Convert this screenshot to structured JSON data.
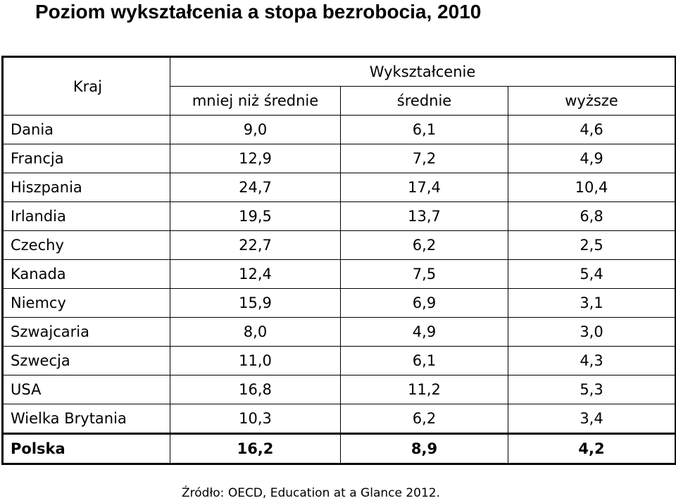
{
  "title": "Poziom wykształcenia a stopa bezrobocia, 2010",
  "source": "Źródło: OECD, Education at a Glance 2012.",
  "chart_data": {
    "type": "table",
    "title": "Poziom wykształcenia a stopa bezrobocia, 2010",
    "row_header": "Kraj",
    "column_group": "Wykształcenie",
    "columns": [
      "mniej niż średnie",
      "średnie",
      "wyższe"
    ],
    "rows": [
      {
        "country": "Dania",
        "values": [
          "9,0",
          "6,1",
          "4,6"
        ]
      },
      {
        "country": "Francja",
        "values": [
          "12,9",
          "7,2",
          "4,9"
        ]
      },
      {
        "country": "Hiszpania",
        "values": [
          "24,7",
          "17,4",
          "10,4"
        ]
      },
      {
        "country": "Irlandia",
        "values": [
          "19,5",
          "13,7",
          "6,8"
        ]
      },
      {
        "country": "Czechy",
        "values": [
          "22,7",
          "6,2",
          "2,5"
        ]
      },
      {
        "country": "Kanada",
        "values": [
          "12,4",
          "7,5",
          "5,4"
        ]
      },
      {
        "country": "Niemcy",
        "values": [
          "15,9",
          "6,9",
          "3,1"
        ]
      },
      {
        "country": "Szwajcaria",
        "values": [
          "8,0",
          "4,9",
          "3,0"
        ]
      },
      {
        "country": "Szwecja",
        "values": [
          "11,0",
          "6,1",
          "4,3"
        ]
      },
      {
        "country": "USA",
        "values": [
          "16,8",
          "11,2",
          "5,3"
        ]
      },
      {
        "country": "Wielka Brytania",
        "values": [
          "10,3",
          "6,2",
          "3,4"
        ]
      },
      {
        "country": "Polska",
        "values": [
          "16,2",
          "8,9",
          "4,2"
        ],
        "highlight": true
      }
    ]
  }
}
